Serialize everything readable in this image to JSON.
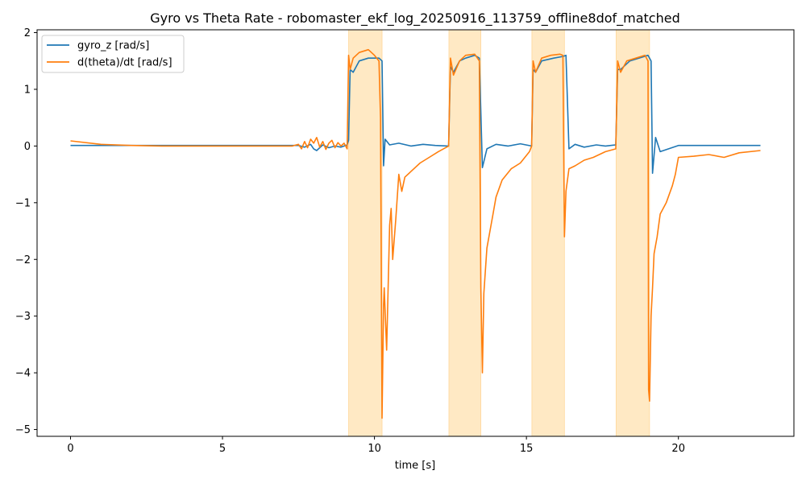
{
  "chart_data": {
    "type": "line",
    "title": "Gyro vs Theta Rate - robomaster_ekf_log_20250916_113759_offline8dof_matched",
    "xlabel": "time [s]",
    "ylabel": "",
    "xlim": [
      -1.1,
      23.8
    ],
    "ylim": [
      -5.12,
      2.05
    ],
    "xticks": [
      0,
      5,
      10,
      15,
      20
    ],
    "yticks": [
      -5,
      -4,
      -3,
      -2,
      -1,
      0,
      1,
      2
    ],
    "xtick_labels": [
      "0",
      "5",
      "10",
      "15",
      "20"
    ],
    "ytick_labels": [
      "−5",
      "−4",
      "−3",
      "−2",
      "−1",
      "0",
      "1",
      "2"
    ],
    "legend_position": "upper-left",
    "highlight_spans": [
      [
        9.15,
        10.25
      ],
      [
        12.45,
        13.5
      ],
      [
        15.18,
        16.25
      ],
      [
        17.95,
        19.05
      ]
    ],
    "highlight_color": "#ffe9c4",
    "series": [
      {
        "name": "gyro_z [rad/s]",
        "color": "#1f77b4",
        "x": [
          0,
          2,
          4,
          6,
          7.5,
          7.7,
          7.9,
          8.0,
          8.1,
          8.3,
          8.5,
          8.7,
          8.9,
          9.1,
          9.15,
          9.2,
          9.3,
          9.5,
          9.8,
          10.0,
          10.15,
          10.25,
          10.3,
          10.35,
          10.5,
          10.8,
          11.2,
          11.6,
          12.0,
          12.44,
          12.5,
          12.6,
          12.8,
          13.0,
          13.3,
          13.45,
          13.55,
          13.7,
          14.0,
          14.4,
          14.8,
          15.17,
          15.22,
          15.3,
          15.5,
          15.9,
          16.2,
          16.3,
          16.4,
          16.6,
          16.9,
          17.3,
          17.6,
          17.94,
          18.0,
          18.1,
          18.4,
          18.7,
          19.0,
          19.1,
          19.15,
          19.25,
          19.4,
          20.0,
          21.0,
          22.0,
          22.7
        ],
        "y": [
          0.01,
          0.01,
          0.01,
          0.01,
          0.01,
          -0.02,
          0.03,
          -0.05,
          -0.08,
          0.02,
          -0.03,
          0.0,
          -0.02,
          0.02,
          0.1,
          1.35,
          1.3,
          1.5,
          1.55,
          1.55,
          1.55,
          1.5,
          -0.35,
          0.12,
          0.02,
          0.05,
          0.0,
          0.03,
          0.01,
          0.0,
          1.4,
          1.3,
          1.5,
          1.55,
          1.6,
          1.55,
          -0.38,
          -0.05,
          0.03,
          0.0,
          0.04,
          0.0,
          1.35,
          1.3,
          1.5,
          1.55,
          1.58,
          1.6,
          -0.05,
          0.03,
          -0.02,
          0.02,
          0.0,
          0.02,
          1.35,
          1.35,
          1.5,
          1.55,
          1.6,
          1.5,
          -0.48,
          0.15,
          -0.1,
          0.01,
          0.01,
          0.01,
          0.01
        ]
      },
      {
        "name": "d(theta)/dt [rad/s]",
        "color": "#ff7f0e",
        "x": [
          0,
          1,
          2,
          3,
          5,
          7.3,
          7.5,
          7.6,
          7.7,
          7.8,
          7.9,
          8.0,
          8.1,
          8.2,
          8.3,
          8.4,
          8.5,
          8.6,
          8.7,
          8.8,
          8.9,
          9.0,
          9.1,
          9.15,
          9.2,
          9.3,
          9.5,
          9.8,
          10.0,
          10.15,
          10.2,
          10.25,
          10.3,
          10.32,
          10.4,
          10.5,
          10.55,
          10.6,
          10.7,
          10.8,
          10.9,
          11.0,
          11.2,
          11.5,
          11.8,
          12.1,
          12.44,
          12.5,
          12.6,
          12.8,
          13.0,
          13.3,
          13.45,
          13.5,
          13.55,
          13.6,
          13.7,
          13.8,
          13.9,
          14.0,
          14.2,
          14.5,
          14.8,
          15.1,
          15.17,
          15.22,
          15.3,
          15.5,
          15.8,
          16.1,
          16.2,
          16.25,
          16.3,
          16.4,
          16.6,
          16.9,
          17.2,
          17.6,
          17.94,
          18.0,
          18.1,
          18.3,
          18.6,
          18.9,
          19.0,
          19.02,
          19.05,
          19.1,
          19.15,
          19.2,
          19.3,
          19.4,
          19.6,
          19.8,
          19.9,
          20.0,
          20.5,
          21.0,
          21.5,
          22.0,
          22.7
        ],
        "y": [
          0.09,
          0.03,
          0.01,
          0.0,
          0.0,
          0.0,
          0.03,
          -0.05,
          0.08,
          -0.03,
          0.12,
          0.05,
          0.15,
          -0.02,
          0.08,
          -0.06,
          0.05,
          0.1,
          -0.03,
          0.06,
          0.0,
          0.05,
          -0.05,
          1.6,
          1.35,
          1.55,
          1.65,
          1.7,
          1.6,
          1.5,
          0.5,
          -4.8,
          -2.8,
          -2.5,
          -3.6,
          -1.4,
          -1.1,
          -2.0,
          -1.3,
          -0.5,
          -0.8,
          -0.55,
          -0.45,
          -0.3,
          -0.2,
          -0.1,
          0.0,
          1.55,
          1.25,
          1.5,
          1.6,
          1.62,
          1.5,
          -2.5,
          -4.0,
          -2.6,
          -1.8,
          -1.5,
          -1.2,
          -0.9,
          -0.6,
          -0.4,
          -0.3,
          -0.1,
          0.0,
          1.5,
          1.3,
          1.55,
          1.6,
          1.62,
          1.6,
          -1.6,
          -0.8,
          -0.4,
          -0.35,
          -0.25,
          -0.2,
          -0.1,
          -0.05,
          1.5,
          1.3,
          1.5,
          1.55,
          1.6,
          1.5,
          -4.3,
          -4.5,
          -3.0,
          -2.5,
          -1.9,
          -1.6,
          -1.2,
          -1.0,
          -0.7,
          -0.5,
          -0.2,
          -0.18,
          -0.15,
          -0.2,
          -0.12,
          -0.08
        ]
      }
    ]
  }
}
